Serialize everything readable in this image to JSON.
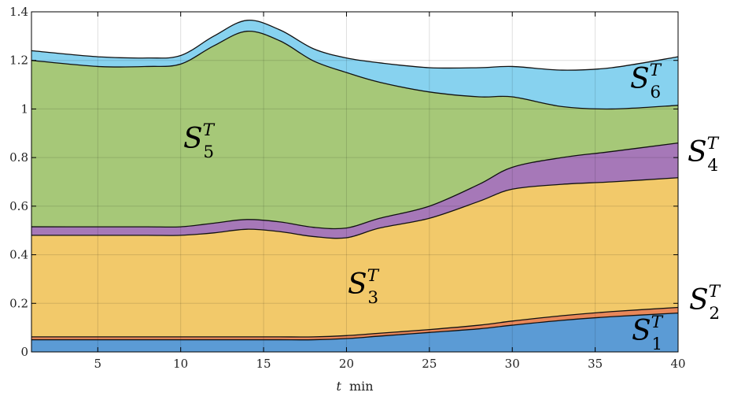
{
  "chart_data": {
    "type": "area",
    "stacked": true,
    "title": "",
    "xlabel_var": "t",
    "xlabel_unit": "min",
    "ylabel": "",
    "xlim": [
      1,
      40
    ],
    "ylim": [
      0,
      1.4
    ],
    "x_ticks": [
      5,
      10,
      15,
      20,
      25,
      30,
      35,
      40
    ],
    "y_ticks": [
      0,
      0.2,
      0.4,
      0.6,
      0.8,
      1,
      1.2,
      1.4
    ],
    "y_tick_labels": [
      "0",
      "0.2",
      "0.4",
      "0.6",
      "0.8",
      "1",
      "1.2",
      "1.4"
    ],
    "grid": true,
    "x": [
      1,
      5,
      8,
      10,
      12,
      14,
      16,
      18,
      20,
      22,
      25,
      28,
      30,
      33,
      36,
      40
    ],
    "series": [
      {
        "label_base": "S",
        "label_sup": "T",
        "label_sub": "1",
        "color": "#5b9bd5",
        "values": [
          0.05,
          0.05,
          0.05,
          0.05,
          0.05,
          0.05,
          0.05,
          0.05,
          0.055,
          0.065,
          0.08,
          0.095,
          0.11,
          0.13,
          0.145,
          0.16
        ]
      },
      {
        "label_base": "S",
        "label_sup": "T",
        "label_sub": "2",
        "color": "#e8875a",
        "values": [
          0.012,
          0.012,
          0.012,
          0.012,
          0.012,
          0.012,
          0.012,
          0.012,
          0.012,
          0.012,
          0.012,
          0.015,
          0.017,
          0.019,
          0.021,
          0.023
        ]
      },
      {
        "label_base": "S",
        "label_sup": "T",
        "label_sub": "3",
        "color": "#f2c96a",
        "values": [
          0.418,
          0.418,
          0.418,
          0.418,
          0.428,
          0.443,
          0.433,
          0.413,
          0.403,
          0.433,
          0.458,
          0.51,
          0.543,
          0.541,
          0.534,
          0.534
        ]
      },
      {
        "label_base": "S",
        "label_sup": "T",
        "label_sub": "4",
        "color": "#a678b8",
        "values": [
          0.035,
          0.035,
          0.035,
          0.035,
          0.04,
          0.04,
          0.04,
          0.038,
          0.04,
          0.04,
          0.05,
          0.07,
          0.09,
          0.11,
          0.125,
          0.143
        ]
      },
      {
        "label_base": "S",
        "label_sup": "T",
        "label_sub": "5",
        "color": "#a6c878",
        "values": [
          0.685,
          0.66,
          0.66,
          0.67,
          0.73,
          0.775,
          0.745,
          0.685,
          0.64,
          0.56,
          0.47,
          0.36,
          0.29,
          0.21,
          0.175,
          0.155
        ]
      },
      {
        "label_base": "S",
        "label_sup": "T",
        "label_sub": "6",
        "color": "#87d2ef",
        "values": [
          0.04,
          0.04,
          0.035,
          0.035,
          0.04,
          0.045,
          0.045,
          0.05,
          0.06,
          0.08,
          0.1,
          0.12,
          0.125,
          0.15,
          0.17,
          0.2
        ]
      }
    ]
  }
}
